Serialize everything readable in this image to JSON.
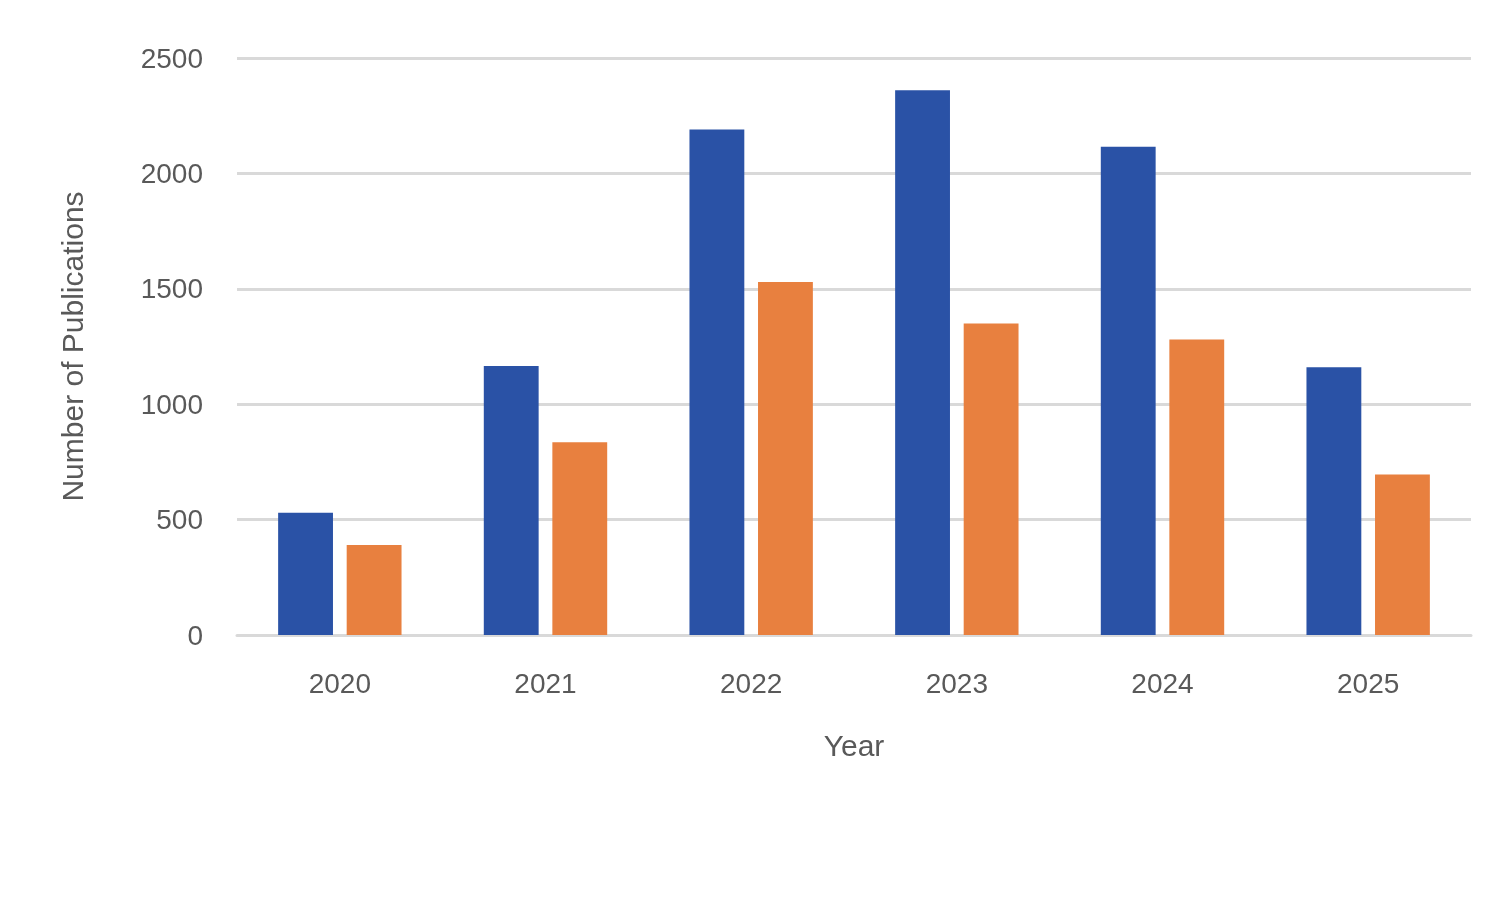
{
  "chart_data": {
    "type": "bar",
    "xlabel": "Year",
    "ylabel": "Number of Publications",
    "categories": [
      "2020",
      "2021",
      "2022",
      "2023",
      "2024",
      "2025"
    ],
    "series": [
      {
        "color": "#2a52a6",
        "values": [
          530,
          1165,
          2190,
          2360,
          2115,
          1160
        ]
      },
      {
        "color": "#e8803f",
        "values": [
          390,
          835,
          1530,
          1350,
          1280,
          695
        ]
      }
    ],
    "ylim": [
      0,
      2500
    ],
    "yticks": [
      0,
      500,
      1000,
      1500,
      2000,
      2500
    ],
    "grid": "y"
  }
}
